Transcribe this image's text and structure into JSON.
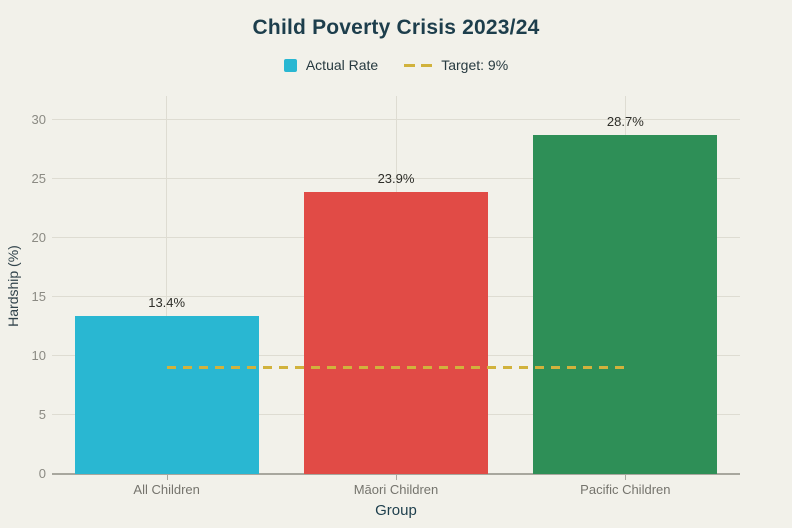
{
  "chart_data": {
    "type": "bar",
    "title": "Child Poverty Crisis 2023/24",
    "xlabel": "Group",
    "ylabel": "Hardship (%)",
    "categories": [
      "All Children",
      "Māori Children",
      "Pacific Children"
    ],
    "series": [
      {
        "name": "Actual Rate",
        "type": "bar",
        "values": [
          13.4,
          23.9,
          28.7
        ],
        "value_labels": [
          "13.4%",
          "23.9%",
          "28.7%"
        ],
        "colors": [
          "#29b7d2",
          "#e14b46",
          "#2e8f57"
        ]
      },
      {
        "name": "Target: 9%",
        "type": "line",
        "style": "dashed",
        "values": [
          9,
          9,
          9
        ],
        "color": "#d1b23c"
      }
    ],
    "ylim": [
      0,
      30
    ],
    "yticks": [
      0,
      5,
      10,
      15,
      20,
      25,
      30
    ],
    "grid": true,
    "legend_position": "top"
  },
  "colors": {
    "background": "#f2f1ea",
    "title_text": "#1d3e4c",
    "legend_text": "#273a40",
    "gridline": "#dedcd2",
    "axis_line": "#a8a79e",
    "ytick_text": "#8b8a83",
    "xtick_text": "#75746d",
    "value_label_text": "#2e2e29"
  }
}
